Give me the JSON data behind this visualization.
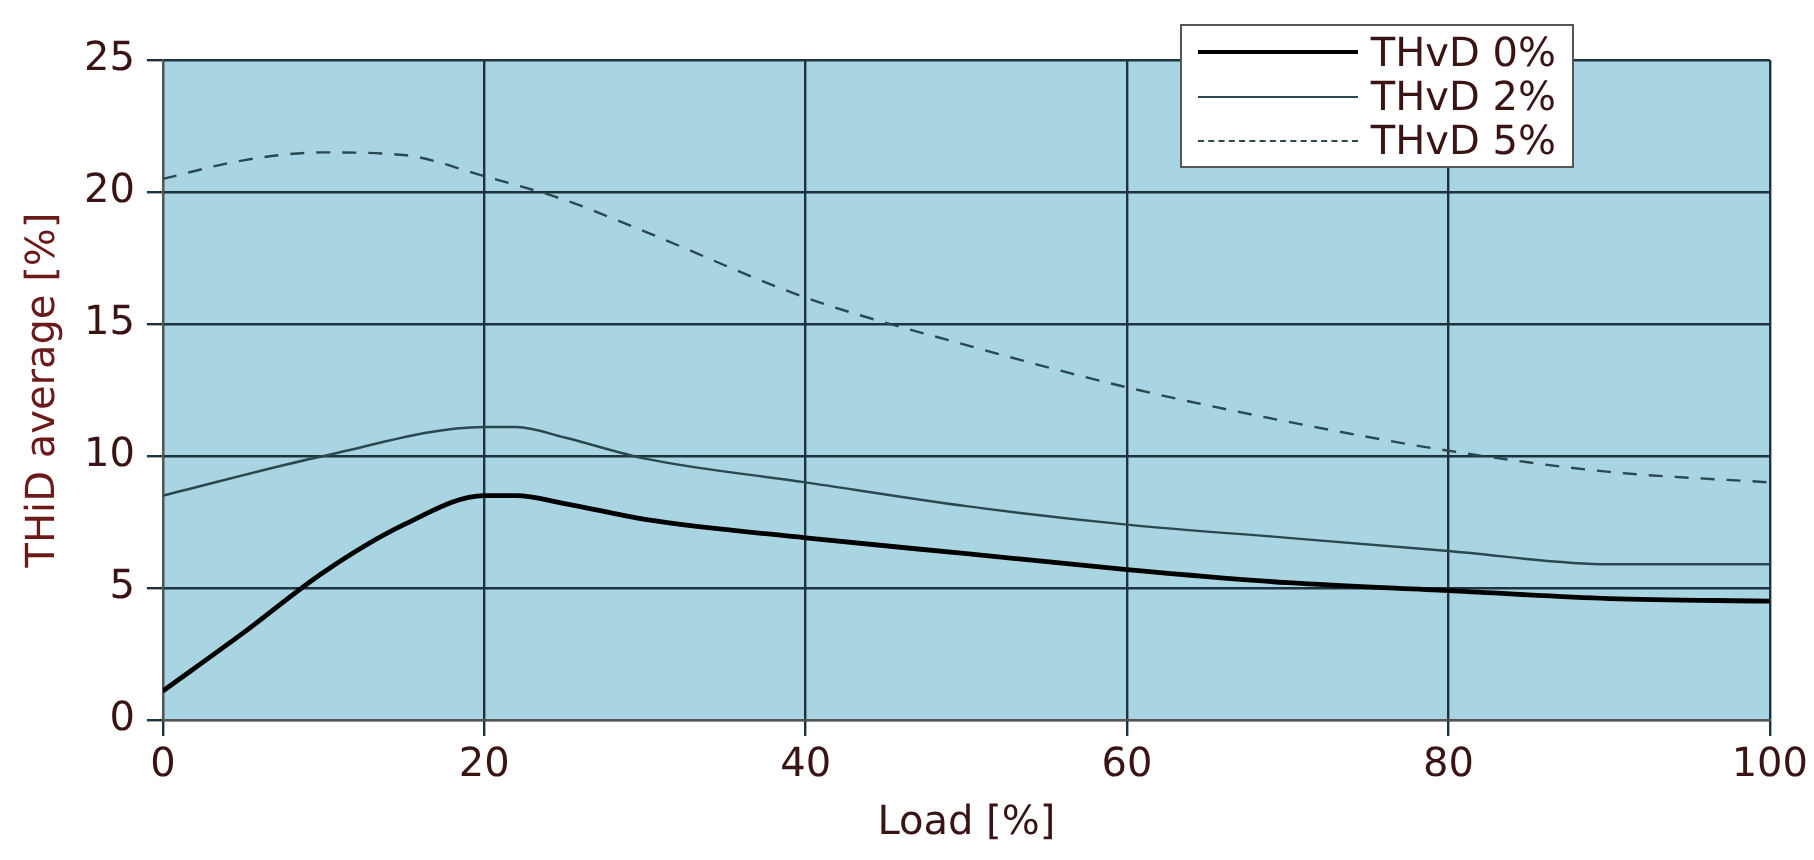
{
  "chart_data": {
    "type": "line",
    "xlabel": "Load [%]",
    "ylabel": "THiD average [%]",
    "xlim": [
      0,
      100
    ],
    "xticks": [
      0,
      20,
      40,
      60,
      80,
      100
    ],
    "ylim": [
      0,
      25
    ],
    "yticks": [
      0,
      5,
      10,
      15,
      20,
      25
    ],
    "grid": true,
    "legend": "top right",
    "marker": "none",
    "series": [
      {
        "name": "THvD 0%",
        "color": "#000000",
        "line_style": "solid",
        "x": [
          0,
          5,
          10,
          15,
          20,
          22,
          25,
          30,
          40,
          50,
          60,
          70,
          80,
          90,
          100
        ],
        "values": [
          1.1,
          3.3,
          5.6,
          7.4,
          8.5,
          8.5,
          8.2,
          7.6,
          6.9,
          6.3,
          5.7,
          5.2,
          4.9,
          4.6,
          4.5
        ]
      },
      {
        "name": "THvD 2%",
        "color": "#2a4850",
        "line_style": "solid",
        "x": [
          0,
          10,
          20,
          22,
          25,
          30,
          40,
          50,
          60,
          70,
          80,
          90,
          100
        ],
        "values": [
          8.5,
          10.0,
          11.1,
          11.1,
          10.7,
          9.9,
          9.0,
          8.1,
          7.4,
          6.9,
          6.4,
          5.9,
          5.9
        ]
      },
      {
        "name": "THvD 5%",
        "color": "#2a4850",
        "line_style": "dashed",
        "x": [
          0,
          5,
          10,
          15,
          20,
          25,
          30,
          40,
          50,
          60,
          70,
          80,
          90,
          100
        ],
        "values": [
          20.5,
          21.2,
          21.5,
          21.4,
          20.6,
          19.7,
          18.5,
          16.0,
          14.2,
          12.6,
          11.3,
          10.2,
          9.4,
          9.0
        ]
      }
    ]
  }
}
